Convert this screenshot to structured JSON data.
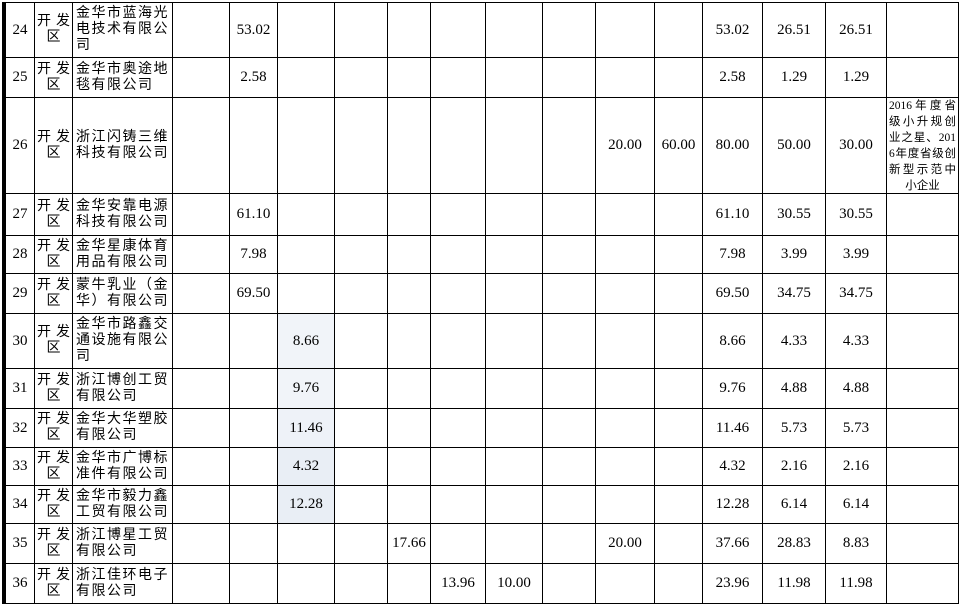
{
  "colors": {
    "grid_line": "#000000",
    "text": "#000000",
    "page_background": "#ffffff",
    "highlight_light": "#f1f4f9",
    "highlight_medium": "#eef2f8",
    "highlight_strong": "#e9eef5"
  },
  "table": {
    "rows": [
      {
        "no": "24",
        "zone": "开发区",
        "company": "金华市蓝海光电技术有限公司",
        "vals": [
          "",
          "53.02",
          "",
          "",
          "",
          "",
          "",
          "",
          "",
          "",
          "53.02",
          "26.51",
          "26.51"
        ],
        "note": "",
        "highlight": ""
      },
      {
        "no": "25",
        "zone": "开发区",
        "company": "金华市奥途地毯有限公司",
        "vals": [
          "",
          "2.58",
          "",
          "",
          "",
          "",
          "",
          "",
          "",
          "",
          "2.58",
          "1.29",
          "1.29"
        ],
        "note": "",
        "highlight": ""
      },
      {
        "no": "26",
        "zone": "开发区",
        "company": "浙江闪铸三维科技有限公司",
        "vals": [
          "",
          "",
          "",
          "",
          "",
          "",
          "",
          "",
          "20.00",
          "60.00",
          "80.00",
          "50.00",
          "30.00"
        ],
        "note": "2016年度省级小升规创业之星、2016年度省级创新型示范中小企业",
        "highlight": ""
      },
      {
        "no": "27",
        "zone": "开发区",
        "company": "金华安靠电源科技有限公司",
        "vals": [
          "",
          "61.10",
          "",
          "",
          "",
          "",
          "",
          "",
          "",
          "",
          "61.10",
          "30.55",
          "30.55"
        ],
        "note": "",
        "highlight": ""
      },
      {
        "no": "28",
        "zone": "开发区",
        "company": "金华星康体育用品有限公司",
        "vals": [
          "",
          "7.98",
          "",
          "",
          "",
          "",
          "",
          "",
          "",
          "",
          "7.98",
          "3.99",
          "3.99"
        ],
        "note": "",
        "highlight": ""
      },
      {
        "no": "29",
        "zone": "开发区",
        "company": "蒙牛乳业（金华）有限公司",
        "vals": [
          "",
          "69.50",
          "",
          "",
          "",
          "",
          "",
          "",
          "",
          "",
          "69.50",
          "34.75",
          "34.75"
        ],
        "note": "",
        "highlight": ""
      },
      {
        "no": "30",
        "zone": "开发区",
        "company": "金华市路鑫交通设施有限公司",
        "vals": [
          "",
          "",
          "8.66",
          "",
          "",
          "",
          "",
          "",
          "",
          "",
          "8.66",
          "4.33",
          "4.33"
        ],
        "note": "",
        "highlight": "#f1f4f9"
      },
      {
        "no": "31",
        "zone": "开发区",
        "company": "浙江博创工贸有限公司",
        "vals": [
          "",
          "",
          "9.76",
          "",
          "",
          "",
          "",
          "",
          "",
          "",
          "9.76",
          "4.88",
          "4.88"
        ],
        "note": "",
        "highlight": "#f1f4f9"
      },
      {
        "no": "32",
        "zone": "开发区",
        "company": "金华大华塑胶有限公司",
        "vals": [
          "",
          "",
          "11.46",
          "",
          "",
          "",
          "",
          "",
          "",
          "",
          "11.46",
          "5.73",
          "5.73"
        ],
        "note": "",
        "highlight": "#eef2f8"
      },
      {
        "no": "33",
        "zone": "开发区",
        "company": "金华市广博标准件有限公司",
        "vals": [
          "",
          "",
          "4.32",
          "",
          "",
          "",
          "",
          "",
          "",
          "",
          "4.32",
          "2.16",
          "2.16"
        ],
        "note": "",
        "highlight": "#e9eef5"
      },
      {
        "no": "34",
        "zone": "开发区",
        "company": "金华市毅力鑫工贸有限公司",
        "vals": [
          "",
          "",
          "12.28",
          "",
          "",
          "",
          "",
          "",
          "",
          "",
          "12.28",
          "6.14",
          "6.14"
        ],
        "note": "",
        "highlight": "#e9eef5"
      },
      {
        "no": "35",
        "zone": "开发区",
        "company": "浙江博星工贸有限公司",
        "vals": [
          "",
          "",
          "",
          "",
          "17.66",
          "",
          "",
          "",
          "20.00",
          "",
          "37.66",
          "28.83",
          "8.83"
        ],
        "note": "",
        "highlight": ""
      },
      {
        "no": "36",
        "zone": "开发区",
        "company": "浙江佳环电子有限公司",
        "vals": [
          "",
          "",
          "",
          "",
          "",
          "13.96",
          "10.00",
          "",
          "",
          "",
          "23.96",
          "11.98",
          "11.98"
        ],
        "note": "",
        "highlight": ""
      }
    ]
  }
}
